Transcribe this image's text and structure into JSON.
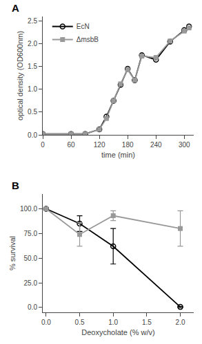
{
  "chart_data": [
    {
      "type": "line",
      "x_label": "time (min)",
      "y_label": "optical density (OD600nm)",
      "annotations": [
        "A"
      ],
      "x": [
        0,
        60,
        90,
        120,
        135,
        150,
        165,
        180,
        195,
        210,
        240,
        270,
        300,
        310
      ],
      "series": [
        {
          "name": "EcN",
          "color": "#000000",
          "marker": "circle-open",
          "values": [
            0.02,
            0.02,
            0.02,
            0.12,
            0.4,
            0.75,
            1.1,
            1.45,
            1.2,
            1.75,
            1.65,
            2.05,
            2.3,
            2.38
          ]
        },
        {
          "name": "ΔmsbB",
          "color": "#999999",
          "marker": "square",
          "values": [
            0.02,
            0.02,
            0.02,
            0.12,
            0.36,
            0.75,
            1.12,
            1.43,
            1.2,
            1.73,
            1.7,
            2.06,
            2.28,
            2.35
          ]
        }
      ],
      "xlim": [
        0,
        320
      ],
      "ylim": [
        0,
        2.6
      ],
      "xticks": [
        0,
        60,
        120,
        180,
        240,
        300
      ],
      "yticks": [
        {
          "value": 0,
          "label": "0.0"
        },
        0.5,
        {
          "value": 1.0,
          "label": "1.0"
        },
        1.5,
        {
          "value": 2.0,
          "label": "2.0"
        },
        2.5
      ],
      "grid": false,
      "legend": "upper left"
    },
    {
      "type": "line",
      "x_label": "Deoxycholate (% w/v)",
      "y_label": "% survival",
      "annotations": [
        "B"
      ],
      "x": [
        0,
        0.5,
        1.0,
        2.0
      ],
      "series": [
        {
          "color": "#000000",
          "marker": "circle-open",
          "values": [
            100.0,
            85.0,
            62.0,
            0.5
          ],
          "errors": [
            0,
            8,
            18,
            0.5
          ]
        },
        {
          "color": "#999999",
          "marker": "square",
          "values": [
            100.0,
            74.0,
            93.0,
            80.0
          ],
          "errors": [
            0,
            12,
            5,
            18
          ]
        }
      ],
      "xlim": [
        -0.05,
        2.2
      ],
      "ylim": [
        -5,
        115
      ],
      "xticks": [
        {
          "value": 0,
          "label": "0.0"
        },
        0.5,
        {
          "value": 1.0,
          "label": "1.0"
        },
        1.5,
        {
          "value": 2.0,
          "label": "2.0"
        }
      ],
      "yticks": [
        {
          "value": 0.0,
          "label": "0.0"
        },
        {
          "value": 25.0,
          "label": "25.0"
        },
        {
          "value": 50.0,
          "label": "50.0"
        },
        {
          "value": 75.0,
          "label": "75.0"
        },
        {
          "value": 100.0,
          "label": "100.0"
        }
      ],
      "grid": false
    }
  ]
}
